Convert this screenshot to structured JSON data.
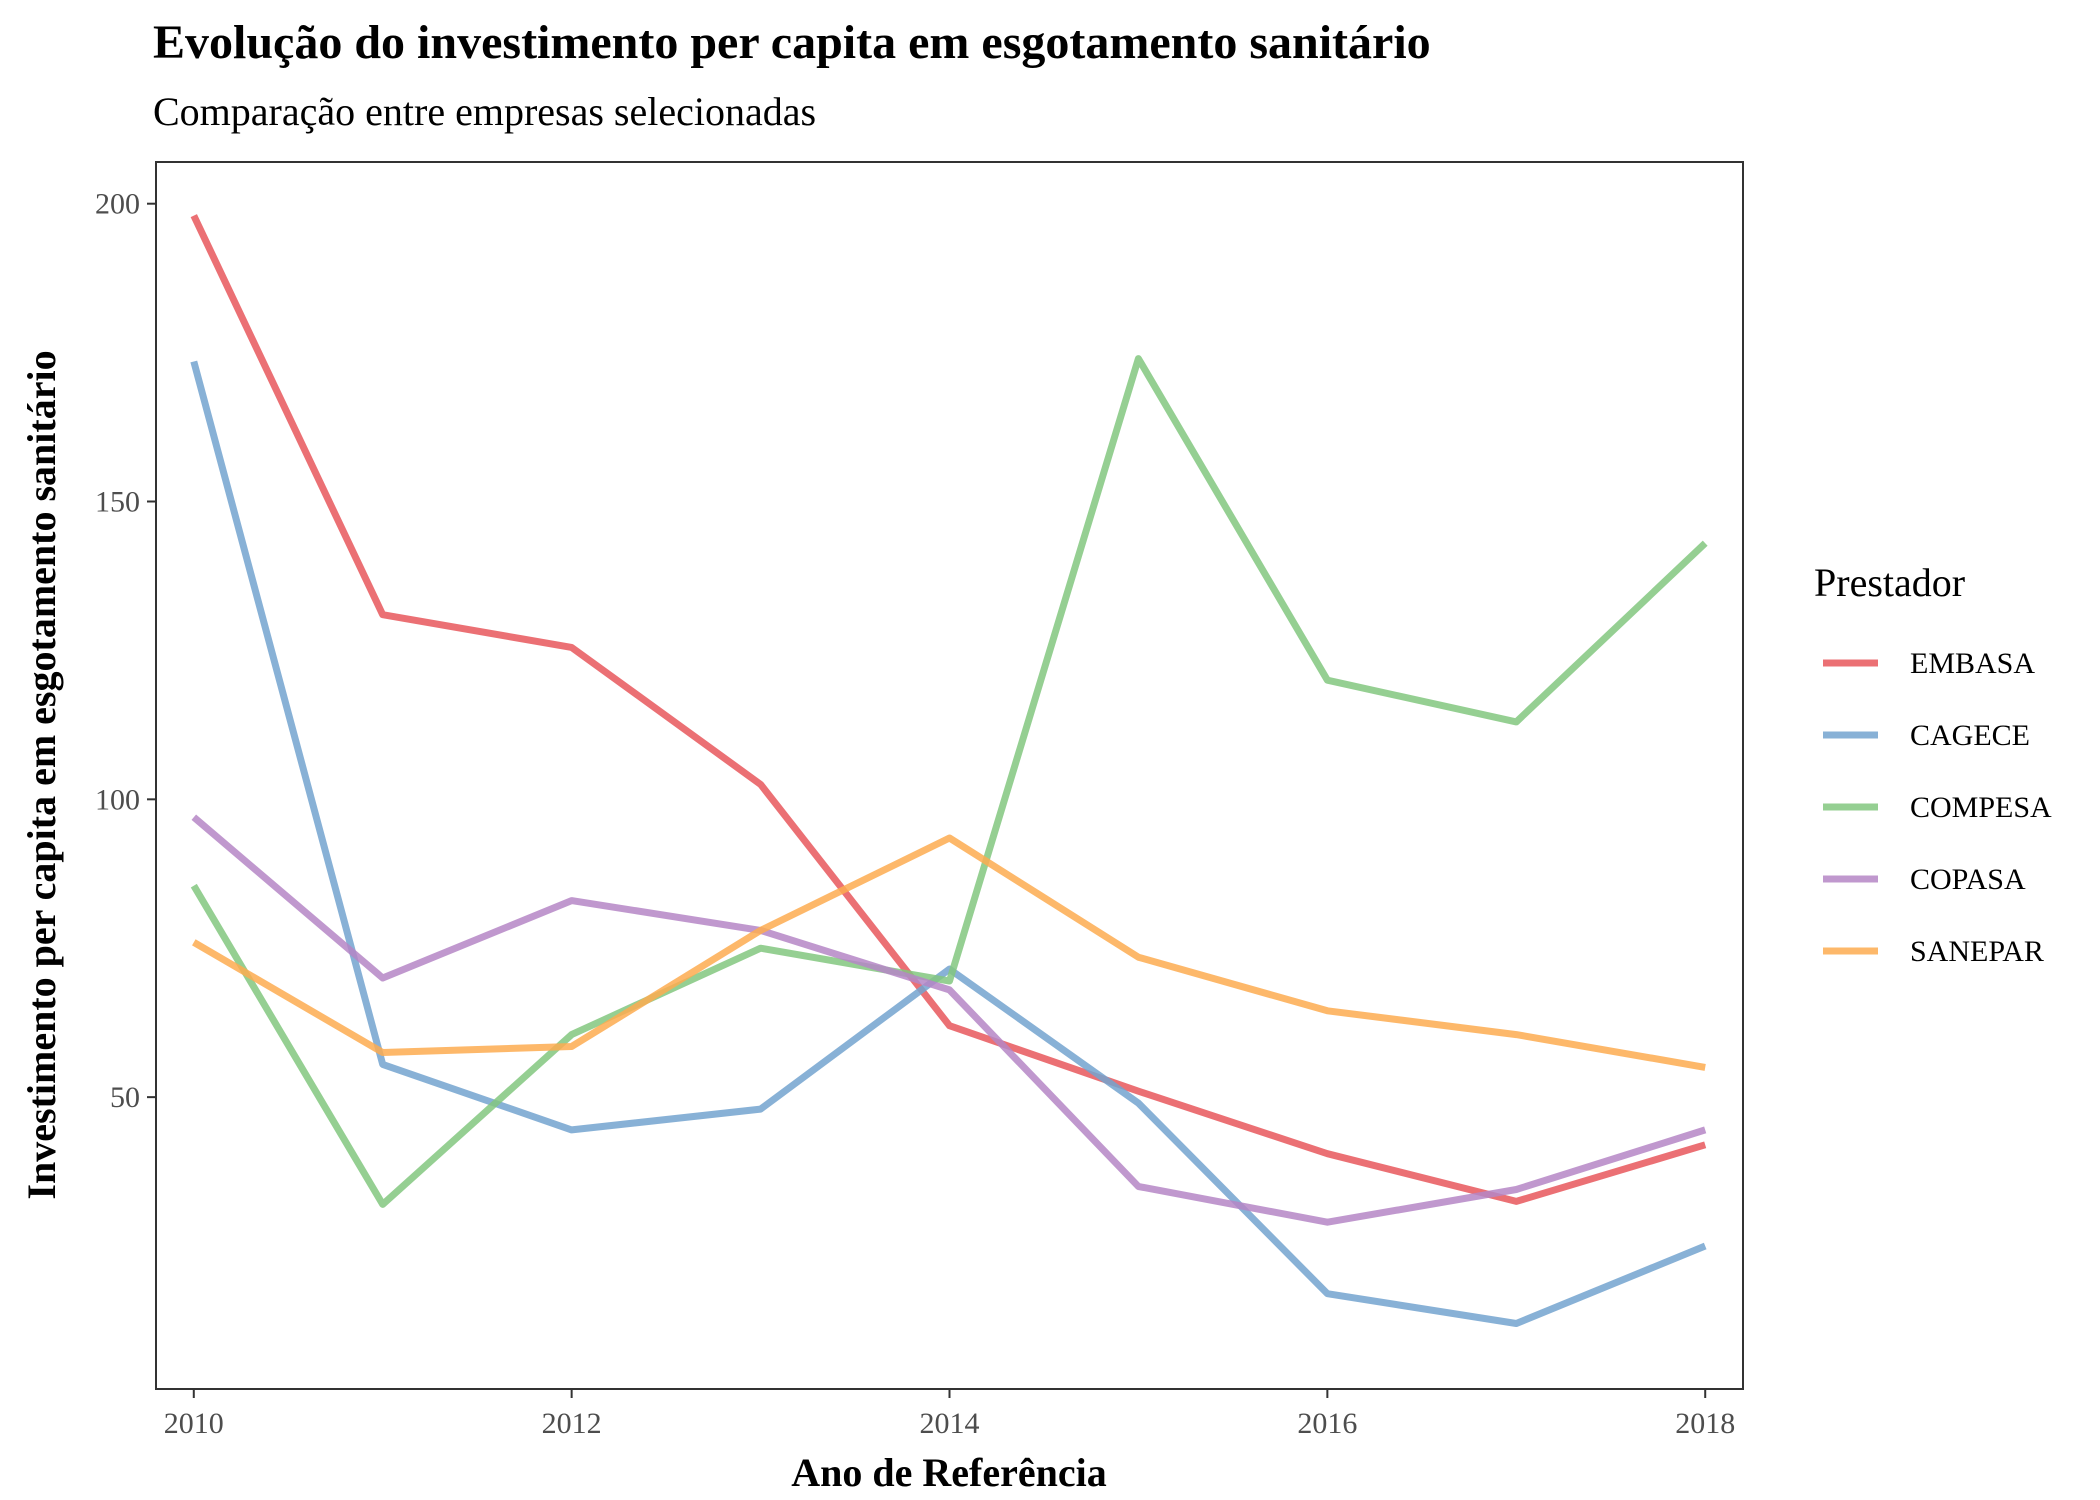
{
  "chart_data": {
    "type": "line",
    "title": "Evolução do investimento per capita em esgotamento sanitário",
    "subtitle": "Comparação entre empresas selecionadas",
    "xlabel": "Ano de Referência",
    "ylabel": "Investimento per capita em esgotamento sanitário",
    "x": [
      2010,
      2011,
      2012,
      2013,
      2014,
      2015,
      2016,
      2017,
      2018
    ],
    "xticks": [
      2010,
      2012,
      2014,
      2016,
      2018
    ],
    "yticks": [
      50,
      100,
      150,
      200
    ],
    "xlim": [
      2009.8,
      2018.2
    ],
    "ylim": [
      1,
      207
    ],
    "grid": false,
    "legend_title": "Prestador",
    "legend_position": "right",
    "series": [
      {
        "name": "EMBASA",
        "color": "#e8575c",
        "values": [
          198,
          131,
          125.5,
          102.5,
          62,
          51,
          40.5,
          32.5,
          42
        ]
      },
      {
        "name": "CAGECE",
        "color": "#73a3cf",
        "values": [
          173.5,
          55.5,
          44.5,
          48,
          71.5,
          49,
          17,
          12,
          25
        ]
      },
      {
        "name": "COMPESA",
        "color": "#82c77f",
        "values": [
          85.5,
          32,
          60.5,
          75,
          69.5,
          174,
          120,
          113,
          143
        ]
      },
      {
        "name": "COPASA",
        "color": "#b586c5",
        "values": [
          97,
          70,
          83,
          78,
          68,
          35,
          29,
          34.5,
          44.5
        ]
      },
      {
        "name": "SANEPAR",
        "color": "#fdab50",
        "values": [
          76,
          57.5,
          58.5,
          78,
          93.5,
          73.5,
          64.5,
          60.5,
          55
        ]
      }
    ]
  }
}
